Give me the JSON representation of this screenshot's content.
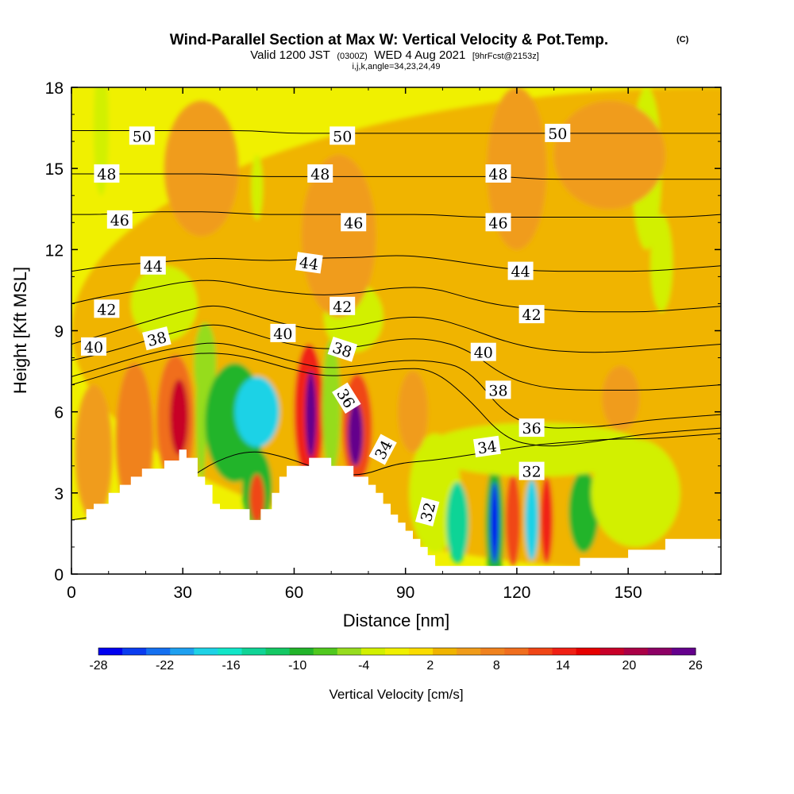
{
  "title": {
    "main": "Wind-Parallel Section at Max W: Vertical Velocity & Pot.Temp.",
    "copyright": "(C)",
    "valid_prefix": "Valid 1200 JST",
    "valid_utc": "(0300Z)",
    "valid_date": "WED 4 Aug 2021",
    "forecast": "[9hrFcst@2153z]",
    "params": "i,j,k,angle=34,23,24,49"
  },
  "chart_data": {
    "type": "heatmap",
    "xlabel": "Distance [nm]",
    "ylabel": "Height [Kft MSL]",
    "xlim": [
      0,
      175
    ],
    "ylim": [
      0,
      18
    ],
    "x_ticks": [
      "0",
      "30",
      "60",
      "90",
      "120",
      "150"
    ],
    "y_ticks": [
      "0",
      "3",
      "6",
      "9",
      "12",
      "15",
      "18"
    ],
    "colorbar": {
      "label": "Vertical Velocity [cm/s]",
      "min": -28,
      "max": 26,
      "tick_labels": [
        "-28",
        "-22",
        "-16",
        "-10",
        "-4",
        "2",
        "8",
        "14",
        "20",
        "26"
      ],
      "colors": [
        "#0000f0",
        "#0a3cf0",
        "#1470f0",
        "#1ea0f0",
        "#1ed2e6",
        "#12e6c8",
        "#10d496",
        "#14c864",
        "#22b42a",
        "#50c81e",
        "#96dc1e",
        "#d2f000",
        "#f0f000",
        "#fadc00",
        "#f0b400",
        "#f09c1a",
        "#f0821e",
        "#f06e1e",
        "#f04616",
        "#f02014",
        "#e60000",
        "#c80028",
        "#aa0046",
        "#8c0064",
        "#64008c"
      ]
    },
    "terrain_kft": [
      [
        0,
        2
      ],
      [
        4,
        2
      ],
      [
        4,
        2.4
      ],
      [
        6,
        2.4
      ],
      [
        6,
        2.6
      ],
      [
        10,
        2.6
      ],
      [
        10,
        3
      ],
      [
        13,
        3
      ],
      [
        13,
        3.3
      ],
      [
        16,
        3.3
      ],
      [
        16,
        3.6
      ],
      [
        19,
        3.6
      ],
      [
        19,
        3.9
      ],
      [
        25,
        3.9
      ],
      [
        25,
        4.2
      ],
      [
        29,
        4.2
      ],
      [
        29,
        4.6
      ],
      [
        31,
        4.6
      ],
      [
        31,
        4.3
      ],
      [
        34,
        4.3
      ],
      [
        34,
        3.6
      ],
      [
        36,
        3.6
      ],
      [
        36,
        3.3
      ],
      [
        38,
        3.3
      ],
      [
        38,
        2.6
      ],
      [
        40,
        2.6
      ],
      [
        40,
        2.4
      ],
      [
        48,
        2.4
      ],
      [
        48,
        2
      ],
      [
        51,
        2
      ],
      [
        51,
        2.4
      ],
      [
        54,
        2.4
      ],
      [
        54,
        3
      ],
      [
        56,
        3
      ],
      [
        56,
        3.6
      ],
      [
        58,
        3.6
      ],
      [
        58,
        4
      ],
      [
        64,
        4
      ],
      [
        64,
        4.3
      ],
      [
        70,
        4.3
      ],
      [
        70,
        4
      ],
      [
        76,
        4
      ],
      [
        76,
        3.6
      ],
      [
        80,
        3.6
      ],
      [
        80,
        3.3
      ],
      [
        82,
        3.3
      ],
      [
        82,
        3
      ],
      [
        84,
        3
      ],
      [
        84,
        2.6
      ],
      [
        86,
        2.6
      ],
      [
        86,
        2.2
      ],
      [
        88,
        2.2
      ],
      [
        88,
        1.9
      ],
      [
        90,
        1.9
      ],
      [
        90,
        1.6
      ],
      [
        92,
        1.6
      ],
      [
        92,
        1.3
      ],
      [
        94,
        1.3
      ],
      [
        94,
        1
      ],
      [
        96,
        1
      ],
      [
        96,
        0.7
      ],
      [
        98,
        0.7
      ],
      [
        98,
        0.3
      ],
      [
        137,
        0.3
      ],
      [
        137,
        0.6
      ],
      [
        150,
        0.6
      ],
      [
        150,
        0.9
      ],
      [
        160,
        0.9
      ],
      [
        160,
        1.3
      ],
      [
        175,
        1.3
      ]
    ],
    "theta_contours": [
      {
        "label": "32",
        "y": [
          2,
          2.2,
          2.6,
          3.3,
          4.2,
          4.6,
          4.3,
          3.8,
          3.6,
          4.1,
          4.2,
          4.4,
          4.6,
          4.8,
          4.9,
          5,
          5,
          5.1,
          5.2
        ]
      },
      {
        "label": "34",
        "y": [
          7,
          7.4,
          7.8,
          8.1,
          8.2,
          8,
          7.6,
          7.3,
          7.4,
          7.6,
          7.6,
          6.5,
          5,
          4.7,
          4.8,
          5,
          5.2,
          5.3,
          5.4
        ]
      },
      {
        "label": "36",
        "y": [
          7.3,
          7.7,
          8.1,
          8.4,
          8.6,
          8.3,
          7.9,
          7.6,
          7.7,
          7.9,
          7.9,
          7.6,
          5.9,
          5.4,
          5.4,
          5.5,
          5.7,
          5.8,
          5.9
        ]
      },
      {
        "label": "38",
        "y": [
          7.9,
          8.2,
          8.6,
          9,
          9.3,
          8.9,
          8.5,
          8.3,
          8.4,
          8.7,
          8.7,
          8.3,
          7.3,
          6.9,
          6.8,
          6.8,
          6.8,
          6.9,
          7
        ]
      },
      {
        "label": "40",
        "y": [
          8.5,
          8.9,
          9.3,
          9.7,
          10,
          9.6,
          9.2,
          9,
          9.2,
          9.5,
          9.5,
          9.1,
          8.6,
          8.3,
          8.2,
          8.2,
          8.3,
          8.4,
          8.5
        ]
      },
      {
        "label": "42",
        "y": [
          10,
          10.3,
          10.5,
          10.8,
          10.9,
          10.6,
          10.4,
          10.3,
          10.4,
          10.6,
          10.6,
          10.2,
          9.9,
          9.8,
          9.7,
          9.7,
          9.7,
          9.8,
          9.9
        ]
      },
      {
        "label": "44",
        "y": [
          11.2,
          11.4,
          11.5,
          11.6,
          11.7,
          11.6,
          11.6,
          11.7,
          11.7,
          11.8,
          11.7,
          11.5,
          11.3,
          11.2,
          11.2,
          11.2,
          11.2,
          11.3,
          11.4
        ]
      },
      {
        "label": "46",
        "y": [
          13.3,
          13.3,
          13.4,
          13.4,
          13.4,
          13.3,
          13.3,
          13.3,
          13.3,
          13.3,
          13.3,
          13.2,
          13.2,
          13.2,
          13.2,
          13.2,
          13.2,
          13.2,
          13.3
        ]
      },
      {
        "label": "48",
        "y": [
          14.8,
          14.8,
          14.8,
          14.8,
          14.8,
          14.7,
          14.7,
          14.7,
          14.7,
          14.7,
          14.7,
          14.7,
          14.7,
          14.6,
          14.6,
          14.6,
          14.6,
          14.6,
          14.6
        ]
      },
      {
        "label": "50",
        "y": [
          16.4,
          16.4,
          16.4,
          16.4,
          16.4,
          16.4,
          16.3,
          16.3,
          16.3,
          16.3,
          16.3,
          16.3,
          16.3,
          16.3,
          16.3,
          16.3,
          16.3,
          16.3,
          16.3
        ]
      }
    ],
    "contour_labels": [
      {
        "text": "50",
        "x": 19,
        "y": 16.2,
        "angle": 0
      },
      {
        "text": "50",
        "x": 73,
        "y": 16.2,
        "angle": 0
      },
      {
        "text": "50",
        "x": 131,
        "y": 16.3,
        "angle": 0
      },
      {
        "text": "48",
        "x": 9.5,
        "y": 14.8,
        "angle": 0
      },
      {
        "text": "48",
        "x": 67,
        "y": 14.8,
        "angle": 0
      },
      {
        "text": "48",
        "x": 115,
        "y": 14.8,
        "angle": 0
      },
      {
        "text": "46",
        "x": 13,
        "y": 13.1,
        "angle": 0
      },
      {
        "text": "46",
        "x": 76,
        "y": 13.0,
        "angle": 0
      },
      {
        "text": "46",
        "x": 115,
        "y": 13.0,
        "angle": 0
      },
      {
        "text": "44",
        "x": 22,
        "y": 11.4,
        "angle": 0
      },
      {
        "text": "44",
        "x": 64,
        "y": 11.5,
        "angle": 8
      },
      {
        "text": "44",
        "x": 121,
        "y": 11.2,
        "angle": 0
      },
      {
        "text": "42",
        "x": 9.5,
        "y": 9.8,
        "angle": 0
      },
      {
        "text": "42",
        "x": 73,
        "y": 9.9,
        "angle": 0
      },
      {
        "text": "42",
        "x": 124,
        "y": 9.6,
        "angle": 0
      },
      {
        "text": "40",
        "x": 6,
        "y": 8.4,
        "angle": 0
      },
      {
        "text": "40",
        "x": 57,
        "y": 8.9,
        "angle": 0
      },
      {
        "text": "40",
        "x": 111,
        "y": 8.2,
        "angle": 0
      },
      {
        "text": "38",
        "x": 23,
        "y": 8.7,
        "angle": -14
      },
      {
        "text": "38",
        "x": 73,
        "y": 8.3,
        "angle": 18
      },
      {
        "text": "38",
        "x": 115,
        "y": 6.8,
        "angle": 0
      },
      {
        "text": "36",
        "x": 74,
        "y": 6.5,
        "angle": 58
      },
      {
        "text": "36",
        "x": 124,
        "y": 5.4,
        "angle": 0
      },
      {
        "text": "34",
        "x": 84,
        "y": 4.6,
        "angle": -62
      },
      {
        "text": "34",
        "x": 112,
        "y": 4.7,
        "angle": -8
      },
      {
        "text": "32",
        "x": 124,
        "y": 3.8,
        "angle": 0
      },
      {
        "text": "32",
        "x": 96,
        "y": 2.3,
        "angle": -75
      }
    ],
    "w_features": [
      {
        "x": 175,
        "y": 9,
        "rx": 175,
        "ry": 9,
        "w": 3
      },
      {
        "x": 28,
        "y": 5.7,
        "rx": 5,
        "ry": 2.4,
        "w": 10
      },
      {
        "x": 29,
        "y": 5.8,
        "rx": 2.5,
        "ry": 1.4,
        "w": 18
      },
      {
        "x": 17,
        "y": 5,
        "rx": 5,
        "ry": 2.8,
        "w": 7
      },
      {
        "x": 6,
        "y": 4.5,
        "rx": 5,
        "ry": 2.5,
        "w": 6
      },
      {
        "x": 36,
        "y": 7.8,
        "rx": 3,
        "ry": 1.5,
        "w": -6
      },
      {
        "x": 35,
        "y": 6,
        "rx": 1.5,
        "ry": 2.5,
        "w": -6
      },
      {
        "x": 44,
        "y": 5.6,
        "rx": 8,
        "ry": 2.2,
        "w": -10
      },
      {
        "x": 50,
        "y": 6,
        "rx": 6,
        "ry": 1.3,
        "w": -18
      },
      {
        "x": 50,
        "y": 3.2,
        "rx": 4,
        "ry": 1.4,
        "w": -10
      },
      {
        "x": 50,
        "y": 2.8,
        "rx": 2,
        "ry": 0.9,
        "w": 12
      },
      {
        "x": 64,
        "y": 6,
        "rx": 4,
        "ry": 2.5,
        "w": 14
      },
      {
        "x": 64.5,
        "y": 5.9,
        "rx": 1.5,
        "ry": 1.6,
        "w": 24
      },
      {
        "x": 70,
        "y": 6.2,
        "rx": 2.5,
        "ry": 2.5,
        "w": -6
      },
      {
        "x": 77,
        "y": 5.4,
        "rx": 4,
        "ry": 2,
        "w": 12
      },
      {
        "x": 76.5,
        "y": 5.2,
        "rx": 2,
        "ry": 1.2,
        "w": 24
      },
      {
        "x": 76,
        "y": 9.5,
        "rx": 8,
        "ry": 1.3,
        "w": -4
      },
      {
        "x": 25,
        "y": 10,
        "rx": 9,
        "ry": 1.4,
        "w": -4
      },
      {
        "x": 98,
        "y": 3,
        "rx": 7,
        "ry": 2.2,
        "w": -4
      },
      {
        "x": 104,
        "y": 1.9,
        "rx": 3,
        "ry": 1.5,
        "w": -14
      },
      {
        "x": 114,
        "y": 1.8,
        "rx": 2.5,
        "ry": 2.2,
        "w": -10
      },
      {
        "x": 114,
        "y": 1.9,
        "rx": 1.1,
        "ry": 1.5,
        "w": -26
      },
      {
        "x": 119,
        "y": 2,
        "rx": 2,
        "ry": 1.7,
        "w": 12
      },
      {
        "x": 124,
        "y": 2,
        "rx": 1.8,
        "ry": 1.5,
        "w": -18
      },
      {
        "x": 128,
        "y": 2,
        "rx": 1.7,
        "ry": 1.6,
        "w": 14
      },
      {
        "x": 138,
        "y": 2.3,
        "rx": 4,
        "ry": 1.5,
        "w": -10
      },
      {
        "x": 152,
        "y": 3,
        "rx": 12,
        "ry": 2,
        "w": -4
      },
      {
        "x": 125,
        "y": 4.6,
        "rx": 30,
        "ry": 1,
        "w": -3
      },
      {
        "x": 148,
        "y": 6.5,
        "rx": 5,
        "ry": 1.2,
        "w": 6
      },
      {
        "x": 92,
        "y": 6,
        "rx": 4,
        "ry": 1.5,
        "w": 5
      },
      {
        "x": 8,
        "y": 16.5,
        "rx": 2,
        "ry": 2.5,
        "w": -4
      },
      {
        "x": 50,
        "y": 14.3,
        "rx": 1.6,
        "ry": 1.2,
        "w": -4
      },
      {
        "x": 155,
        "y": 15,
        "rx": 4,
        "ry": 3,
        "w": -4
      },
      {
        "x": 159,
        "y": 11.5,
        "rx": 3,
        "ry": 1.8,
        "w": -4
      },
      {
        "x": 35,
        "y": 15,
        "rx": 10,
        "ry": 2.5,
        "w": 6
      },
      {
        "x": 145,
        "y": 15.5,
        "rx": 15,
        "ry": 2,
        "w": 6
      },
      {
        "x": 72,
        "y": 12.5,
        "rx": 10,
        "ry": 3,
        "w": 6
      },
      {
        "x": 120,
        "y": 15,
        "rx": 8,
        "ry": 3,
        "w": 6
      }
    ]
  }
}
